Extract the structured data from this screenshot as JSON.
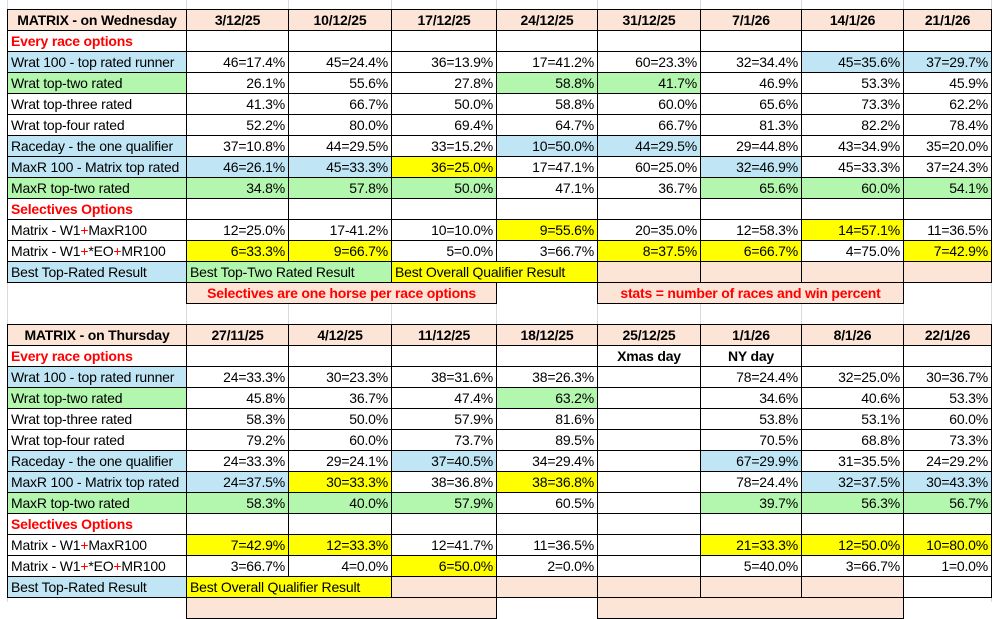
{
  "palette": {
    "b": "#c0e6f5",
    "g": "#b3f7ae",
    "y": "#ffff00",
    "s": "#fce4d6",
    "w": "#ffffff",
    "red": "#ff0000"
  },
  "tables": [
    {
      "title": "MATRIX - on Wednesday",
      "dates": [
        "3/12/25",
        "10/12/25",
        "17/12/25",
        "24/12/25",
        "31/12/25",
        "7/1/26",
        "14/1/26",
        "21/1/26"
      ],
      "rows": [
        {
          "label": "Every race options",
          "type": "section",
          "bg": "w",
          "cells": []
        },
        {
          "label": "Wrat 100 - top rated runner",
          "bg": "b",
          "cells": [
            {
              "v": "46=17.4%"
            },
            {
              "v": "45=24.4%"
            },
            {
              "v": "36=13.9%"
            },
            {
              "v": "17=41.2%"
            },
            {
              "v": "60=23.3%"
            },
            {
              "v": "32=34.4%"
            },
            {
              "v": "45=35.6%",
              "bg": "b"
            },
            {
              "v": "37=29.7%",
              "bg": "b"
            }
          ]
        },
        {
          "label": "Wrat top-two rated",
          "bg": "g",
          "cells": [
            {
              "v": "26.1%"
            },
            {
              "v": "55.6%"
            },
            {
              "v": "27.8%"
            },
            {
              "v": "58.8%",
              "bg": "g"
            },
            {
              "v": "41.7%",
              "bg": "g"
            },
            {
              "v": "46.9%"
            },
            {
              "v": "53.3%"
            },
            {
              "v": "45.9%"
            }
          ]
        },
        {
          "label": "Wrat top-three rated",
          "bg": "w",
          "cells": [
            {
              "v": "41.3%"
            },
            {
              "v": "66.7%"
            },
            {
              "v": "50.0%"
            },
            {
              "v": "58.8%"
            },
            {
              "v": "60.0%"
            },
            {
              "v": "65.6%"
            },
            {
              "v": "73.3%"
            },
            {
              "v": "62.2%"
            }
          ]
        },
        {
          "label": "Wrat top-four rated",
          "bg": "w",
          "cells": [
            {
              "v": "52.2%"
            },
            {
              "v": "80.0%"
            },
            {
              "v": "69.4%"
            },
            {
              "v": "64.7%"
            },
            {
              "v": "66.7%"
            },
            {
              "v": "81.3%"
            },
            {
              "v": "82.2%"
            },
            {
              "v": "78.4%"
            }
          ]
        },
        {
          "label": "Raceday - the one qualifier",
          "bg": "b",
          "cells": [
            {
              "v": "37=10.8%"
            },
            {
              "v": "44=29.5%"
            },
            {
              "v": "33=15.2%"
            },
            {
              "v": "10=50.0%",
              "bg": "b"
            },
            {
              "v": "44=29.5%",
              "bg": "b"
            },
            {
              "v": "29=44.8%"
            },
            {
              "v": "43=34.9%"
            },
            {
              "v": "35=20.0%"
            }
          ]
        },
        {
          "label": "MaxR 100 - Matrix top rated",
          "bg": "b",
          "cells": [
            {
              "v": "46=26.1%",
              "bg": "b"
            },
            {
              "v": "45=33.3%",
              "bg": "b"
            },
            {
              "v": "36=25.0%",
              "bg": "y"
            },
            {
              "v": "17=47.1%"
            },
            {
              "v": "60=25.0%"
            },
            {
              "v": "32=46.9%",
              "bg": "b"
            },
            {
              "v": "45=33.3%"
            },
            {
              "v": "37=24.3%"
            }
          ]
        },
        {
          "label": "MaxR top-two rated",
          "bg": "g",
          "cells": [
            {
              "v": "34.8%",
              "bg": "g"
            },
            {
              "v": "57.8%",
              "bg": "g"
            },
            {
              "v": "50.0%",
              "bg": "g"
            },
            {
              "v": "47.1%"
            },
            {
              "v": "36.7%"
            },
            {
              "v": "65.6%",
              "bg": "g"
            },
            {
              "v": "60.0%",
              "bg": "g"
            },
            {
              "v": "54.1%",
              "bg": "g"
            }
          ]
        },
        {
          "label": "Selectives Options",
          "type": "section",
          "bg": "w",
          "cells": []
        },
        {
          "label": "Matrix - W1+MaxR100",
          "bg": "w",
          "cells": [
            {
              "v": "12=25.0%"
            },
            {
              "v": "17-41.2%"
            },
            {
              "v": "10=10.0%"
            },
            {
              "v": "9=55.6%",
              "bg": "y"
            },
            {
              "v": "20=35.0%"
            },
            {
              "v": "12=58.3%"
            },
            {
              "v": "14=57.1%",
              "bg": "y"
            },
            {
              "v": "11=36.5%"
            }
          ]
        },
        {
          "label": "Matrix - W1+*EO+MR100",
          "bg": "w",
          "cells": [
            {
              "v": "6=33.3%",
              "bg": "y"
            },
            {
              "v": "9=66.7%",
              "bg": "y"
            },
            {
              "v": "5=0.0%"
            },
            {
              "v": "3=66.7%"
            },
            {
              "v": "8=37.5%",
              "bg": "y"
            },
            {
              "v": "6=66.7%",
              "bg": "y"
            },
            {
              "v": "4=75.0%"
            },
            {
              "v": "7=42.9%",
              "bg": "y"
            }
          ]
        }
      ],
      "best_row": {
        "label": "Best Top-Rated Result",
        "bg": "b",
        "cells": [
          {
            "v": "Best Top-Two Rated Result",
            "bg": "g",
            "span": 2
          },
          {
            "v": "Best Overall Qualifier Result",
            "bg": "y",
            "span": 2
          },
          {
            "v": "",
            "bg": "s"
          },
          {
            "v": "",
            "bg": "s"
          },
          {
            "v": "",
            "bg": "s"
          },
          {
            "v": "",
            "bg": "s"
          }
        ]
      },
      "notes": [
        {
          "text": "Selectives are one horse per race options"
        },
        {
          "text": "stats = number of races and win percent"
        }
      ]
    },
    {
      "title": "MATRIX - on Thursday",
      "dates": [
        "27/11/25",
        "4/12/25",
        "11/12/25",
        "18/12/25",
        "25/12/25",
        "1/1/26",
        "8/1/26",
        "22/1/26"
      ],
      "rows": [
        {
          "label": "Every race options",
          "type": "section",
          "bg": "w",
          "cells": [
            {
              "v": ""
            },
            {
              "v": ""
            },
            {
              "v": ""
            },
            {
              "v": ""
            },
            {
              "v": "Xmas day",
              "type": "note"
            },
            {
              "v": "NY day",
              "type": "note"
            },
            {
              "v": ""
            },
            {
              "v": ""
            }
          ]
        },
        {
          "label": "Wrat 100 - top rated runner",
          "bg": "b",
          "cells": [
            {
              "v": "24=33.3%"
            },
            {
              "v": "30=23.3%"
            },
            {
              "v": "38=31.6%"
            },
            {
              "v": "38=26.3%"
            },
            {
              "v": ""
            },
            {
              "v": "78=24.4%"
            },
            {
              "v": "32=25.0%"
            },
            {
              "v": "30=36.7%"
            }
          ]
        },
        {
          "label": "Wrat top-two rated",
          "bg": "g",
          "cells": [
            {
              "v": "45.8%"
            },
            {
              "v": "36.7%"
            },
            {
              "v": "47.4%"
            },
            {
              "v": "63.2%",
              "bg": "g"
            },
            {
              "v": ""
            },
            {
              "v": "34.6%"
            },
            {
              "v": "40.6%"
            },
            {
              "v": "53.3%"
            }
          ]
        },
        {
          "label": "Wrat top-three rated",
          "bg": "w",
          "cells": [
            {
              "v": "58.3%"
            },
            {
              "v": "50.0%"
            },
            {
              "v": "57.9%"
            },
            {
              "v": "81.6%"
            },
            {
              "v": ""
            },
            {
              "v": "53.8%"
            },
            {
              "v": "53.1%"
            },
            {
              "v": "60.0%"
            }
          ]
        },
        {
          "label": "Wrat top-four rated",
          "bg": "w",
          "cells": [
            {
              "v": "79.2%"
            },
            {
              "v": "60.0%"
            },
            {
              "v": "73.7%"
            },
            {
              "v": "89.5%"
            },
            {
              "v": ""
            },
            {
              "v": "70.5%"
            },
            {
              "v": "68.8%"
            },
            {
              "v": "73.3%"
            }
          ]
        },
        {
          "label": "Raceday - the one qualifier",
          "bg": "b",
          "cells": [
            {
              "v": "24=33.3%"
            },
            {
              "v": "29=24.1%"
            },
            {
              "v": "37=40.5%",
              "bg": "b"
            },
            {
              "v": "34=29.4%"
            },
            {
              "v": ""
            },
            {
              "v": "67=29.9%",
              "bg": "b"
            },
            {
              "v": "31=35.5%"
            },
            {
              "v": "24=29.2%"
            }
          ]
        },
        {
          "label": "MaxR 100 - Matrix top rated",
          "bg": "b",
          "cells": [
            {
              "v": "24=37.5%",
              "bg": "b"
            },
            {
              "v": "30=33.3%",
              "bg": "y"
            },
            {
              "v": "38=36.8%"
            },
            {
              "v": "38=36.8%",
              "bg": "y"
            },
            {
              "v": ""
            },
            {
              "v": "78=24.4%"
            },
            {
              "v": "32=37.5%",
              "bg": "b"
            },
            {
              "v": "30=43.3%",
              "bg": "b"
            }
          ]
        },
        {
          "label": "MaxR top-two rated",
          "bg": "g",
          "cells": [
            {
              "v": "58.3%",
              "bg": "g"
            },
            {
              "v": "40.0%",
              "bg": "g"
            },
            {
              "v": "57.9%",
              "bg": "g"
            },
            {
              "v": "60.5%"
            },
            {
              "v": ""
            },
            {
              "v": "39.7%",
              "bg": "g"
            },
            {
              "v": "56.3%",
              "bg": "g"
            },
            {
              "v": "56.7%",
              "bg": "g"
            }
          ]
        },
        {
          "label": "Selectives Options",
          "type": "section",
          "bg": "w",
          "cells": []
        },
        {
          "label": "Matrix - W1+MaxR100",
          "bg": "w",
          "cells": [
            {
              "v": "7=42.9%",
              "bg": "y"
            },
            {
              "v": "12=33.3%",
              "bg": "y"
            },
            {
              "v": "12=41.7%"
            },
            {
              "v": "11=36.5%"
            },
            {
              "v": ""
            },
            {
              "v": "21=33.3%",
              "bg": "y"
            },
            {
              "v": "12=50.0%",
              "bg": "y"
            },
            {
              "v": "10=80.0%",
              "bg": "y"
            }
          ]
        },
        {
          "label": "Matrix - W1+*EO+MR100",
          "bg": "w",
          "cells": [
            {
              "v": "3=66.7%"
            },
            {
              "v": "4=0.0%"
            },
            {
              "v": "6=50.0%",
              "bg": "y"
            },
            {
              "v": "2=0.0%"
            },
            {
              "v": ""
            },
            {
              "v": "5=40.0%"
            },
            {
              "v": "3=66.7%"
            },
            {
              "v": "1=0.0%"
            }
          ]
        }
      ],
      "best_row": {
        "label": "Best Top-Rated Result",
        "bg": "b",
        "cells": [
          {
            "v": "Best Overall Qualifier Result",
            "bg": "y",
            "span": 2
          },
          {
            "v": "",
            "bg": "s"
          },
          {
            "v": "",
            "bg": "s"
          },
          {
            "v": "",
            "bg": "s"
          },
          {
            "v": "",
            "bg": "s"
          },
          {
            "v": "",
            "bg": "s"
          },
          {
            "v": "",
            "bg": "w"
          }
        ]
      },
      "notes": [
        {
          "text": ""
        },
        {
          "text": ""
        }
      ]
    }
  ]
}
